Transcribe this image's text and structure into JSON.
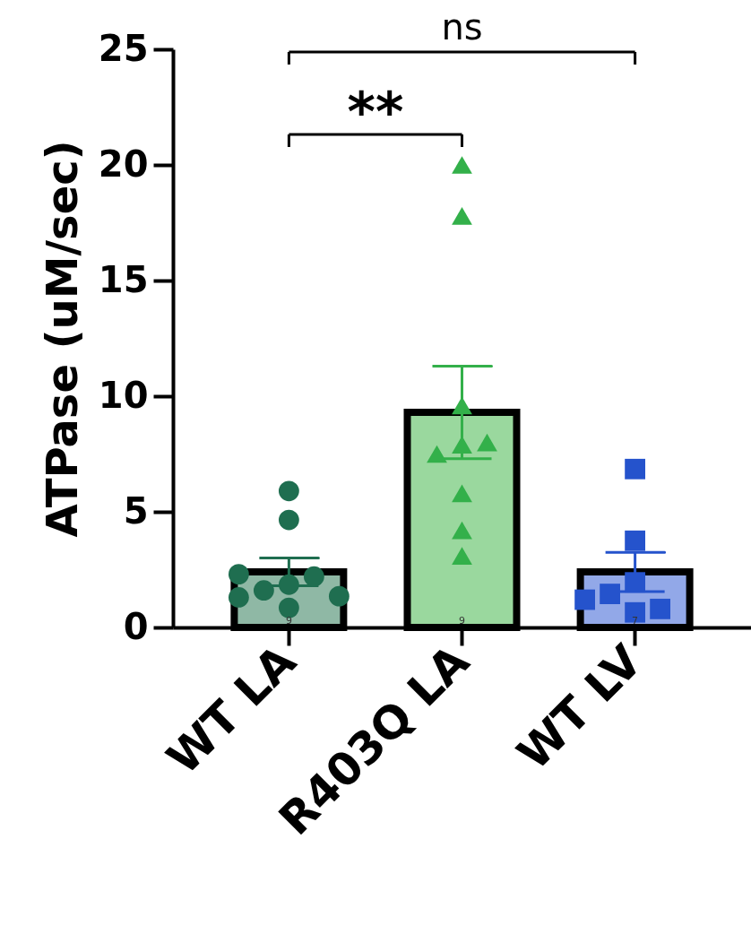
{
  "chart_data": {
    "type": "bar",
    "ylabel": "ATPase (uM/sec)",
    "categories": [
      "WT LA",
      "R403Q LA",
      "WT LV"
    ],
    "series": [
      {
        "type": "bar",
        "values": [
          2.4,
          9.3,
          2.4
        ],
        "colors": [
          "#8fb8a5",
          "#9ad89e",
          "#92a8e8"
        ],
        "errors": [
          0.6,
          2.0,
          0.85
        ]
      },
      {
        "type": "scatter",
        "marker": "circle",
        "color": "#1f6e50",
        "x": [
          "WT LA",
          "WT LA",
          "WT LA",
          "WT LA",
          "WT LA",
          "WT LA",
          "WT LA",
          "WT LA",
          "WT LA"
        ],
        "values": [
          5.9,
          4.65,
          1.85,
          0.85,
          1.6,
          2.2,
          1.3,
          2.3,
          1.35
        ]
      },
      {
        "type": "scatter",
        "marker": "triangle",
        "color": "#33b04a",
        "x": [
          "R403Q LA",
          "R403Q LA",
          "R403Q LA",
          "R403Q LA",
          "R403Q LA",
          "R403Q LA",
          "R403Q LA",
          "R403Q LA",
          "R403Q LA"
        ],
        "values": [
          20,
          17.8,
          9.6,
          7.9,
          7.5,
          8.0,
          5.8,
          4.2,
          3.1
        ]
      },
      {
        "type": "scatter",
        "marker": "square",
        "color": "#2553cc",
        "x": [
          "WT LV",
          "WT LV",
          "WT LV",
          "WT LV",
          "WT LV",
          "WT LV",
          "WT LV"
        ],
        "values": [
          6.85,
          3.75,
          1.95,
          0.65,
          1.45,
          0.8,
          1.2
        ]
      }
    ],
    "ylim": [
      0,
      25
    ],
    "yticks": [
      0,
      5,
      10,
      15,
      20,
      25
    ],
    "annotations": [
      "**",
      "ns",
      "9",
      "9",
      "7"
    ]
  }
}
